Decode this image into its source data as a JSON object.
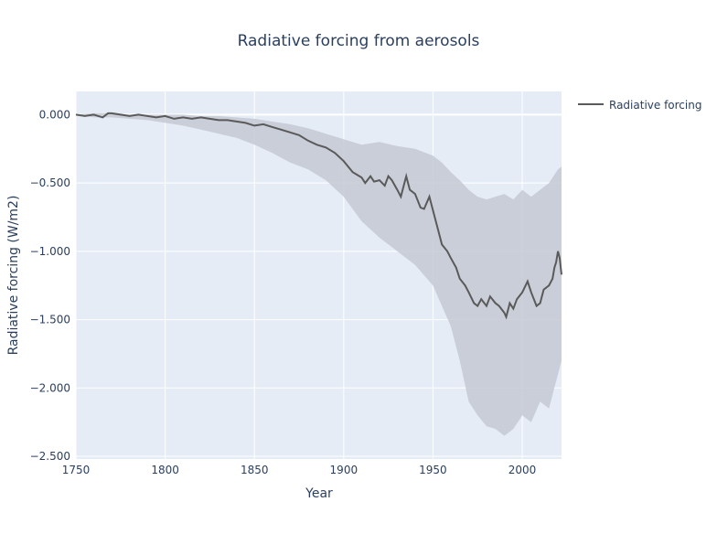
{
  "chart_data": {
    "type": "line",
    "title": "Radiative forcing from aerosols",
    "xlabel": "Year",
    "ylabel": "Radiative forcing (W/m2)",
    "xlim": [
      1750,
      2022
    ],
    "ylim": [
      -2.52,
      0.17
    ],
    "x_ticks": [
      1750,
      1800,
      1850,
      1900,
      1950,
      2000
    ],
    "x_tick_labels": [
      "1750",
      "1800",
      "1850",
      "1900",
      "1950",
      "2000"
    ],
    "y_ticks": [
      0,
      -0.5,
      -1,
      -1.5,
      -2,
      -2.5
    ],
    "y_tick_labels": [
      "0.000",
      "−0.500",
      "−1.000",
      "−1.500",
      "−2.000",
      "−2.500"
    ],
    "grid": true,
    "legend_position": "top-right",
    "series": [
      {
        "name": "Radiative forcing",
        "color": "#5a5a5a",
        "x": [
          1750,
          1755,
          1760,
          1765,
          1768,
          1770,
          1775,
          1780,
          1785,
          1790,
          1795,
          1800,
          1805,
          1810,
          1815,
          1820,
          1825,
          1830,
          1835,
          1840,
          1845,
          1850,
          1855,
          1860,
          1865,
          1870,
          1875,
          1880,
          1885,
          1890,
          1895,
          1900,
          1905,
          1910,
          1912,
          1915,
          1917,
          1920,
          1923,
          1925,
          1927,
          1930,
          1932,
          1935,
          1937,
          1940,
          1943,
          1945,
          1948,
          1950,
          1953,
          1955,
          1958,
          1960,
          1963,
          1965,
          1968,
          1970,
          1973,
          1975,
          1977,
          1980,
          1982,
          1985,
          1987,
          1990,
          1991,
          1993,
          1995,
          1997,
          2000,
          2003,
          2005,
          2008,
          2010,
          2012,
          2015,
          2017,
          2018,
          2019,
          2020,
          2021,
          2022
        ],
        "values": [
          0.0,
          -0.01,
          0.0,
          -0.02,
          0.01,
          0.01,
          0.0,
          -0.01,
          0.0,
          -0.01,
          -0.02,
          -0.01,
          -0.03,
          -0.02,
          -0.03,
          -0.02,
          -0.03,
          -0.04,
          -0.04,
          -0.05,
          -0.06,
          -0.08,
          -0.07,
          -0.09,
          -0.11,
          -0.13,
          -0.15,
          -0.19,
          -0.22,
          -0.24,
          -0.28,
          -0.34,
          -0.42,
          -0.46,
          -0.5,
          -0.45,
          -0.49,
          -0.48,
          -0.52,
          -0.45,
          -0.48,
          -0.55,
          -0.6,
          -0.45,
          -0.55,
          -0.58,
          -0.68,
          -0.69,
          -0.6,
          -0.7,
          -0.85,
          -0.95,
          -1.0,
          -1.05,
          -1.12,
          -1.2,
          -1.25,
          -1.3,
          -1.38,
          -1.4,
          -1.35,
          -1.4,
          -1.33,
          -1.38,
          -1.4,
          -1.45,
          -1.48,
          -1.38,
          -1.42,
          -1.35,
          -1.3,
          -1.22,
          -1.3,
          -1.4,
          -1.38,
          -1.28,
          -1.25,
          -1.2,
          -1.12,
          -1.08,
          -1.0,
          -1.05,
          -1.17
        ]
      }
    ],
    "band": {
      "color": "#c6c9d2",
      "x": [
        1750,
        1760,
        1770,
        1780,
        1790,
        1800,
        1810,
        1820,
        1830,
        1840,
        1850,
        1860,
        1870,
        1880,
        1890,
        1900,
        1910,
        1920,
        1930,
        1940,
        1950,
        1955,
        1960,
        1965,
        1970,
        1975,
        1980,
        1985,
        1990,
        1995,
        2000,
        2005,
        2010,
        2015,
        2020,
        2022
      ],
      "upper": [
        0.0,
        0.01,
        0.01,
        0.0,
        0.0,
        0.0,
        0.0,
        -0.01,
        -0.01,
        -0.02,
        -0.03,
        -0.05,
        -0.07,
        -0.1,
        -0.14,
        -0.18,
        -0.22,
        -0.2,
        -0.23,
        -0.25,
        -0.3,
        -0.35,
        -0.42,
        -0.48,
        -0.55,
        -0.6,
        -0.62,
        -0.6,
        -0.58,
        -0.62,
        -0.55,
        -0.6,
        -0.55,
        -0.5,
        -0.4,
        -0.38
      ],
      "lower": [
        0.0,
        -0.02,
        -0.02,
        -0.03,
        -0.04,
        -0.06,
        -0.08,
        -0.11,
        -0.14,
        -0.17,
        -0.22,
        -0.28,
        -0.35,
        -0.4,
        -0.48,
        -0.6,
        -0.78,
        -0.9,
        -1.0,
        -1.1,
        -1.25,
        -1.4,
        -1.55,
        -1.8,
        -2.1,
        -2.2,
        -2.28,
        -2.3,
        -2.35,
        -2.3,
        -2.2,
        -2.25,
        -2.1,
        -2.15,
        -1.9,
        -1.8
      ]
    }
  }
}
